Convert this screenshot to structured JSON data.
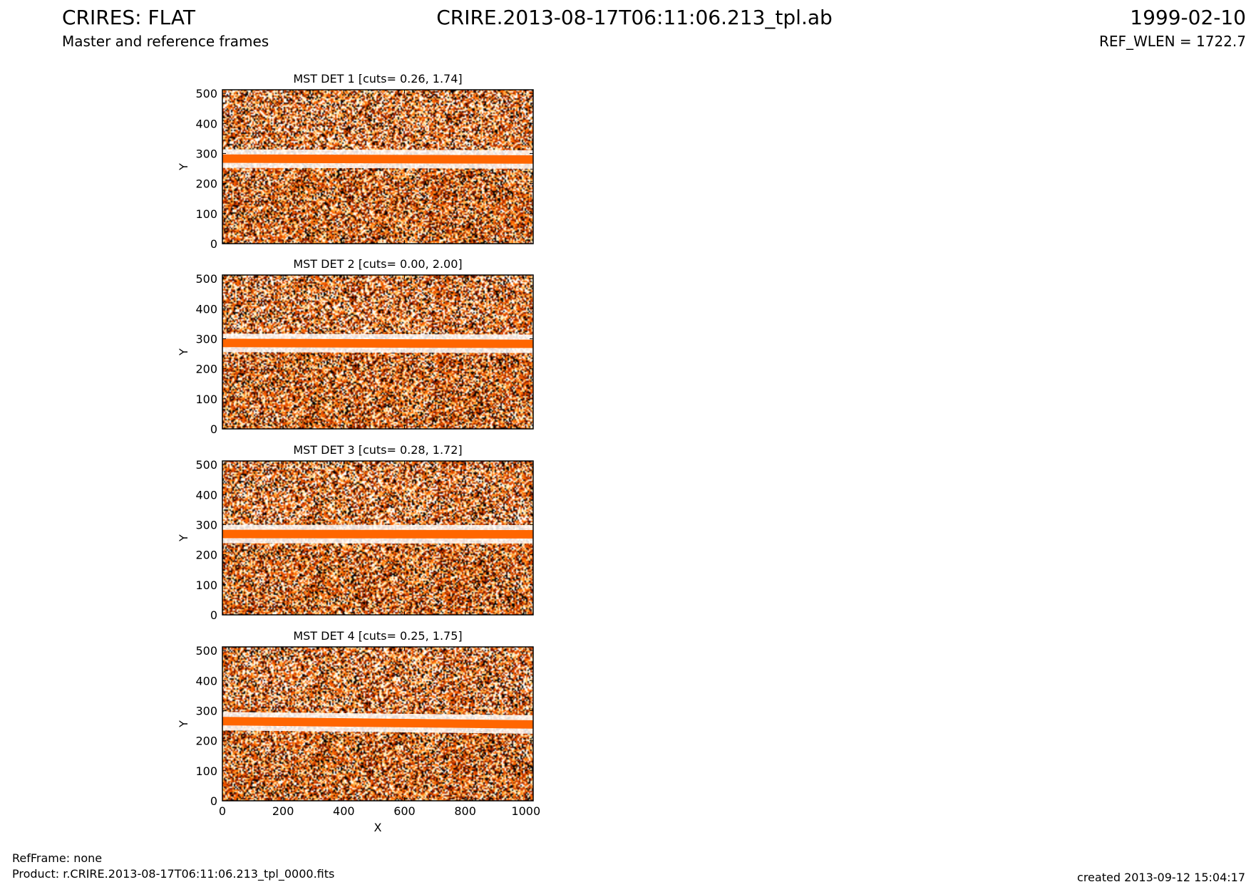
{
  "header": {
    "title_left": "CRIRES: FLAT",
    "subtitle_left": "Master and reference frames",
    "title_center": "CRIRE.2013-08-17T06:11:06.213_tpl.ab",
    "title_right": "1999-02-10",
    "subtitle_right": "REF_WLEN = 1722.7"
  },
  "footer": {
    "ref_frame": "RefFrame: none",
    "product": "Product: r.CRIRE.2013-08-17T06:11:06.213_tpl_0000.fits",
    "created": "created 2013-09-12 15:04:17"
  },
  "colors": {
    "colormap": [
      "#000000",
      "#7a1500",
      "#d94400",
      "#ff6a00",
      "#ffb347",
      "#fff0c0",
      "#ffffff"
    ],
    "band": "#ff6600"
  },
  "chart_data": [
    {
      "type": "heatmap",
      "title": "MST DET 1 [cuts= 0.26, 1.74]",
      "xlabel": "",
      "ylabel": "Y",
      "xlim": [
        0,
        1024
      ],
      "ylim": [
        0,
        512
      ],
      "xticks": [
        0,
        200,
        400,
        600,
        800,
        1000
      ],
      "yticks": [
        0,
        100,
        200,
        300,
        400,
        500
      ],
      "cuts": [
        0.26,
        1.74
      ],
      "band": {
        "y_start": 283,
        "y_end": 280,
        "half_width": 14
      }
    },
    {
      "type": "heatmap",
      "title": "MST DET 2 [cuts= 0.00, 2.00]",
      "xlabel": "",
      "ylabel": "Y",
      "xlim": [
        0,
        1024
      ],
      "ylim": [
        0,
        512
      ],
      "xticks": [
        0,
        200,
        400,
        600,
        800,
        1000
      ],
      "yticks": [
        0,
        100,
        200,
        300,
        400,
        500
      ],
      "cuts": [
        0.0,
        2.0
      ],
      "band": {
        "y_start": 286,
        "y_end": 283,
        "half_width": 14
      }
    },
    {
      "type": "heatmap",
      "title": "MST DET 3 [cuts= 0.28, 1.72]",
      "xlabel": "",
      "ylabel": "Y",
      "xlim": [
        0,
        1024
      ],
      "ylim": [
        0,
        512
      ],
      "xticks": [
        0,
        200,
        400,
        600,
        800,
        1000
      ],
      "yticks": [
        0,
        100,
        200,
        300,
        400,
        500
      ],
      "cuts": [
        0.28,
        1.72
      ],
      "band": {
        "y_start": 269,
        "y_end": 268,
        "half_width": 14
      }
    },
    {
      "type": "heatmap",
      "title": "MST DET 4 [cuts= 0.25, 1.75]",
      "xlabel": "X",
      "ylabel": "Y",
      "xlim": [
        0,
        1024
      ],
      "ylim": [
        0,
        512
      ],
      "xticks": [
        0,
        200,
        400,
        600,
        800,
        1000
      ],
      "yticks": [
        0,
        100,
        200,
        300,
        400,
        500
      ],
      "cuts": [
        0.25,
        1.75
      ],
      "band": {
        "y_start": 265,
        "y_end": 254,
        "half_width": 14
      }
    }
  ]
}
